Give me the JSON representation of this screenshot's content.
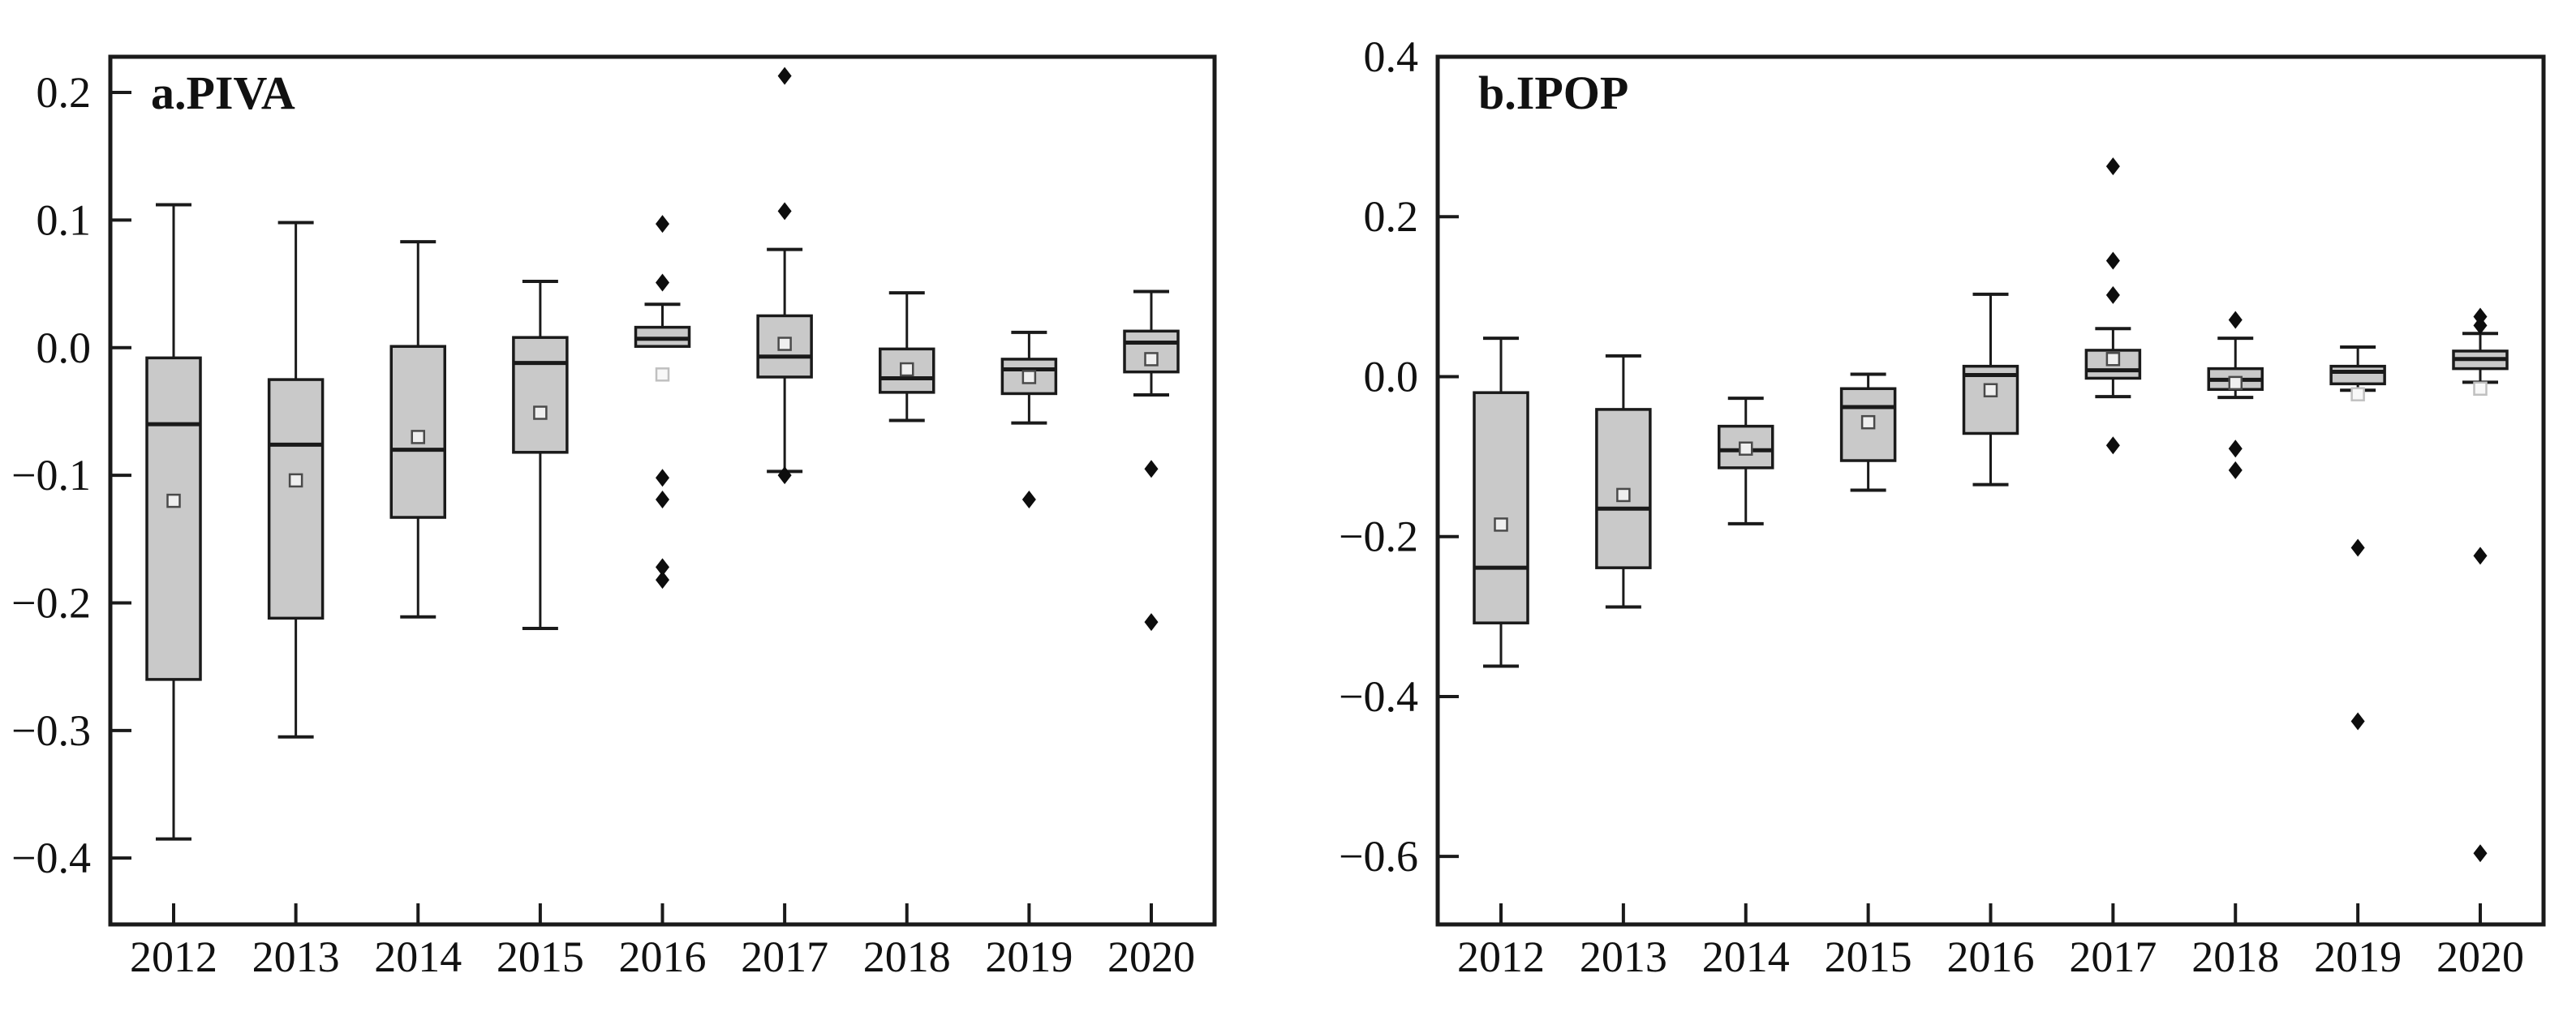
{
  "styles": {
    "background": "#ffffff",
    "box_fill": "#c9c9c9",
    "line_color": "#1a1a1a",
    "text_color": "#111111",
    "outlier_color": "#0d0d0d",
    "mean_stroke": "#4a4a4a",
    "mean_fill": "#efefef",
    "mean_faint_stroke": "#c0c0c0",
    "mean_faint_fill": "#f8f8f8"
  },
  "chart_data": [
    {
      "type": "box",
      "title": "a.PIVA",
      "xlabel": "",
      "ylabel": "",
      "grid": false,
      "legend": "none",
      "categories": [
        "2012",
        "2013",
        "2014",
        "2015",
        "2016",
        "2017",
        "2018",
        "2019",
        "2020"
      ],
      "ylim": [
        -0.452,
        0.228
      ],
      "yticks": [
        0.2,
        0.1,
        0.0,
        -0.1,
        -0.2,
        -0.3,
        -0.4
      ],
      "ytick_labels": [
        "0.2",
        "0.1",
        "0.0",
        "−0.1",
        "−0.2",
        "−0.3",
        "−0.4"
      ],
      "series": [
        {
          "year": "2012",
          "whisker_low": -0.385,
          "q1": -0.26,
          "median": -0.06,
          "q3": -0.008,
          "whisker_high": 0.112,
          "mean": -0.12,
          "mean_faint": false,
          "outliers": []
        },
        {
          "year": "2013",
          "whisker_low": -0.305,
          "q1": -0.212,
          "median": -0.076,
          "q3": -0.025,
          "whisker_high": 0.098,
          "mean": -0.104,
          "mean_faint": false,
          "outliers": []
        },
        {
          "year": "2014",
          "whisker_low": -0.211,
          "q1": -0.133,
          "median": -0.08,
          "q3": 0.001,
          "whisker_high": 0.083,
          "mean": -0.07,
          "mean_faint": false,
          "outliers": []
        },
        {
          "year": "2015",
          "whisker_low": -0.22,
          "q1": -0.082,
          "median": -0.012,
          "q3": 0.008,
          "whisker_high": 0.052,
          "mean": -0.051,
          "mean_faint": false,
          "outliers": []
        },
        {
          "year": "2016",
          "whisker_low": 0.001,
          "q1": 0.001,
          "median": 0.007,
          "q3": 0.016,
          "whisker_high": 0.034,
          "mean": -0.021,
          "mean_faint": true,
          "outliers": [
            0.097,
            0.051,
            -0.102,
            -0.119,
            -0.172,
            -0.182
          ]
        },
        {
          "year": "2017",
          "whisker_low": -0.097,
          "q1": -0.023,
          "median": -0.007,
          "q3": 0.025,
          "whisker_high": 0.077,
          "mean": 0.003,
          "mean_faint": false,
          "outliers": [
            0.213,
            0.107,
            -0.1
          ]
        },
        {
          "year": "2018",
          "whisker_low": -0.057,
          "q1": -0.035,
          "median": -0.024,
          "q3": -0.001,
          "whisker_high": 0.043,
          "mean": -0.017,
          "mean_faint": false,
          "outliers": []
        },
        {
          "year": "2019",
          "whisker_low": -0.059,
          "q1": -0.036,
          "median": -0.017,
          "q3": -0.009,
          "whisker_high": 0.012,
          "mean": -0.023,
          "mean_faint": false,
          "outliers": [
            -0.119
          ]
        },
        {
          "year": "2020",
          "whisker_low": -0.037,
          "q1": -0.019,
          "median": 0.004,
          "q3": 0.013,
          "whisker_high": 0.044,
          "mean": -0.009,
          "mean_faint": false,
          "outliers": [
            -0.095,
            -0.215
          ]
        }
      ]
    },
    {
      "type": "box",
      "title": "b.IPOP",
      "xlabel": "",
      "ylabel": "",
      "grid": false,
      "legend": "none",
      "categories": [
        "2012",
        "2013",
        "2014",
        "2015",
        "2016",
        "2017",
        "2018",
        "2019",
        "2020"
      ],
      "ylim": [
        -0.685,
        0.4
      ],
      "yticks": [
        0.4,
        0.2,
        0.0,
        -0.2,
        -0.4,
        -0.6
      ],
      "ytick_labels": [
        "0.4",
        "0.2",
        "0.0",
        "−0.2",
        "−0.4",
        "−0.6"
      ],
      "series": [
        {
          "year": "2012",
          "whisker_low": -0.362,
          "q1": -0.308,
          "median": -0.239,
          "q3": -0.02,
          "whisker_high": 0.048,
          "mean": -0.185,
          "mean_faint": false,
          "outliers": []
        },
        {
          "year": "2013",
          "whisker_low": -0.288,
          "q1": -0.239,
          "median": -0.165,
          "q3": -0.041,
          "whisker_high": 0.026,
          "mean": -0.148,
          "mean_faint": false,
          "outliers": []
        },
        {
          "year": "2014",
          "whisker_low": -0.184,
          "q1": -0.114,
          "median": -0.092,
          "q3": -0.062,
          "whisker_high": -0.027,
          "mean": -0.09,
          "mean_faint": false,
          "outliers": []
        },
        {
          "year": "2015",
          "whisker_low": -0.142,
          "q1": -0.105,
          "median": -0.038,
          "q3": -0.015,
          "whisker_high": 0.003,
          "mean": -0.057,
          "mean_faint": false,
          "outliers": []
        },
        {
          "year": "2016",
          "whisker_low": -0.135,
          "q1": -0.071,
          "median": 0.002,
          "q3": 0.013,
          "whisker_high": 0.103,
          "mean": -0.017,
          "mean_faint": false,
          "outliers": []
        },
        {
          "year": "2017",
          "whisker_low": -0.025,
          "q1": -0.002,
          "median": 0.008,
          "q3": 0.033,
          "whisker_high": 0.06,
          "mean": 0.022,
          "mean_faint": false,
          "outliers": [
            0.263,
            0.145,
            0.102,
            -0.086
          ]
        },
        {
          "year": "2018",
          "whisker_low": -0.026,
          "q1": -0.016,
          "median": -0.004,
          "q3": 0.01,
          "whisker_high": 0.048,
          "mean": -0.008,
          "mean_faint": false,
          "outliers": [
            0.071,
            -0.09,
            -0.117
          ]
        },
        {
          "year": "2019",
          "whisker_low": -0.017,
          "q1": -0.009,
          "median": 0.006,
          "q3": 0.013,
          "whisker_high": 0.037,
          "mean": -0.022,
          "mean_faint": true,
          "outliers": [
            -0.214,
            -0.431
          ]
        },
        {
          "year": "2020",
          "whisker_low": -0.007,
          "q1": 0.01,
          "median": 0.022,
          "q3": 0.032,
          "whisker_high": 0.054,
          "mean": -0.015,
          "mean_faint": true,
          "outliers": [
            0.075,
            0.064,
            -0.224,
            -0.596
          ]
        }
      ]
    }
  ]
}
